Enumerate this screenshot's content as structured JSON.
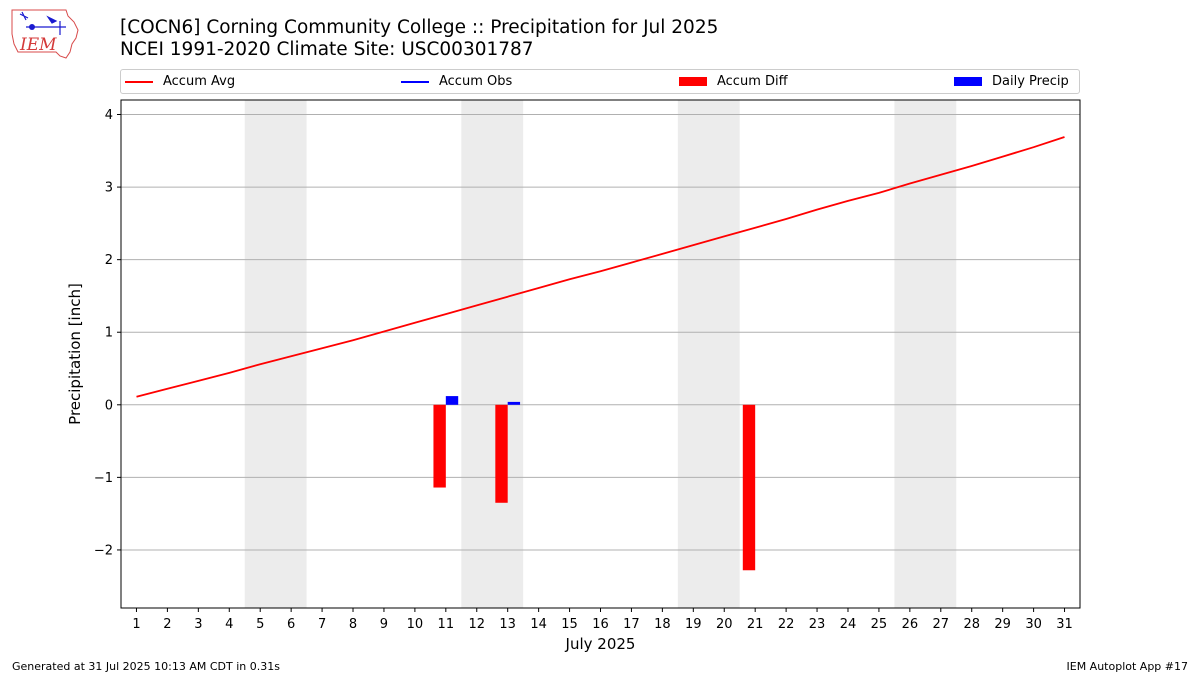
{
  "header": {
    "logo_text": "IEM",
    "title_line1": "[COCN6] Corning Community College :: Precipitation for Jul 2025",
    "title_line2": "NCEI 1991-2020 Climate Site: USC00301787"
  },
  "legend": {
    "items": [
      {
        "label": "Accum Avg",
        "color": "#ff0000",
        "kind": "line"
      },
      {
        "label": "Accum Obs",
        "color": "#0000ff",
        "kind": "line"
      },
      {
        "label": "Accum Diff",
        "color": "#ff0000",
        "kind": "patch"
      },
      {
        "label": "Daily Precip",
        "color": "#0000ff",
        "kind": "patch"
      }
    ]
  },
  "footer": {
    "left": "Generated at 31 Jul 2025 10:13 AM CDT in 0.31s",
    "right": "IEM Autoplot App #17"
  },
  "chart_data": {
    "type": "line",
    "title": "[COCN6] Corning Community College :: Precipitation for Jul 2025",
    "subtitle": "NCEI 1991-2020 Climate Site: USC00301787",
    "xlabel": "July 2025",
    "ylabel": "Precipitation [inch]",
    "x": [
      1,
      2,
      3,
      4,
      5,
      6,
      7,
      8,
      9,
      10,
      11,
      12,
      13,
      14,
      15,
      16,
      17,
      18,
      19,
      20,
      21,
      22,
      23,
      24,
      25,
      26,
      27,
      28,
      29,
      30,
      31
    ],
    "xlim": [
      0.5,
      31.5
    ],
    "ylim": [
      -2.8,
      4.2
    ],
    "yticks": [
      -2,
      -1,
      0,
      1,
      2,
      3,
      4
    ],
    "grid": "horizontal",
    "weekend_shading": [
      [
        4.5,
        6.5
      ],
      [
        11.5,
        13.5
      ],
      [
        18.5,
        20.5
      ],
      [
        25.5,
        27.5
      ]
    ],
    "weekend_color": "#ececec",
    "legend_position": "top",
    "series": [
      {
        "name": "Accum Avg",
        "kind": "line",
        "color": "#ff0000",
        "x": [
          1,
          2,
          3,
          4,
          5,
          6,
          7,
          8,
          9,
          10,
          11,
          12,
          13,
          14,
          15,
          16,
          17,
          18,
          19,
          20,
          21,
          22,
          23,
          24,
          25,
          26,
          27,
          28,
          29,
          30,
          31
        ],
        "values": [
          0.11,
          0.22,
          0.33,
          0.44,
          0.56,
          0.67,
          0.78,
          0.89,
          1.01,
          1.13,
          1.25,
          1.37,
          1.49,
          1.61,
          1.73,
          1.84,
          1.96,
          2.08,
          2.2,
          2.32,
          2.44,
          2.56,
          2.69,
          2.81,
          2.92,
          3.05,
          3.17,
          3.29,
          3.42,
          3.55,
          3.69
        ]
      },
      {
        "name": "Accum Diff",
        "kind": "bar",
        "color": "#ff0000",
        "x": [
          11,
          13,
          21
        ],
        "values": [
          -1.14,
          -1.35,
          -2.28
        ]
      },
      {
        "name": "Daily Precip",
        "kind": "bar",
        "color": "#0000ff",
        "x": [
          11,
          13
        ],
        "values": [
          0.12,
          0.04
        ]
      }
    ]
  }
}
